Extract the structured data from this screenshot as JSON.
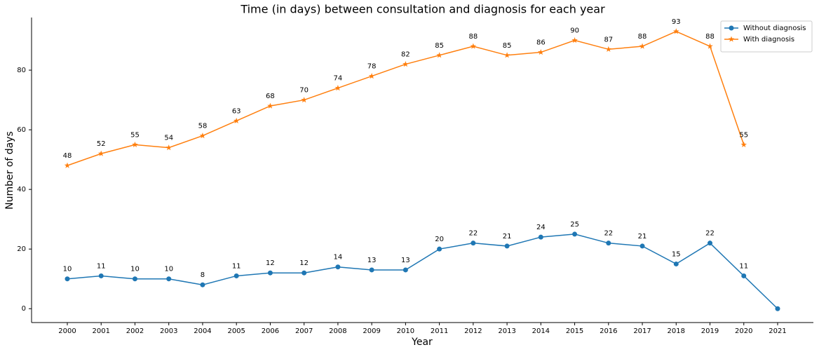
{
  "chart_data": {
    "type": "line",
    "title": "Time (in days) between consultation and diagnosis for each year",
    "x_label": "Year",
    "y_label": "Number of days",
    "categories": [
      "2000",
      "2001",
      "2002",
      "2003",
      "2004",
      "2005",
      "2006",
      "2007",
      "2008",
      "2009",
      "2010",
      "2011",
      "2012",
      "2013",
      "2014",
      "2015",
      "2016",
      "2017",
      "2018",
      "2019",
      "2020",
      "2021"
    ],
    "series": [
      {
        "name": "Without diagnosis",
        "color": "#1f77b4",
        "marker": "circle",
        "values": [
          10,
          11,
          10,
          10,
          8,
          11,
          12,
          12,
          14,
          13,
          13,
          20,
          22,
          21,
          24,
          25,
          22,
          21,
          15,
          22,
          11,
          0
        ],
        "value_labels": [
          "10",
          "11",
          "10",
          "10",
          "8",
          "11",
          "12",
          "12",
          "14",
          "13",
          "13",
          "20",
          "22",
          "21",
          "24",
          "25",
          "22",
          "21",
          "15",
          "22",
          "11",
          null
        ]
      },
      {
        "name": "With diagnosis",
        "color": "#ff7f0e",
        "marker": "star",
        "values": [
          48,
          52,
          55,
          54,
          58,
          63,
          68,
          70,
          74,
          78,
          82,
          85,
          88,
          85,
          86,
          90,
          87,
          88,
          93,
          88,
          55,
          null
        ]
      }
    ],
    "ylim": [
      -4.65,
      97.65
    ],
    "yticks": [
      0,
      20,
      40,
      60,
      80
    ],
    "legend": "upper right"
  }
}
